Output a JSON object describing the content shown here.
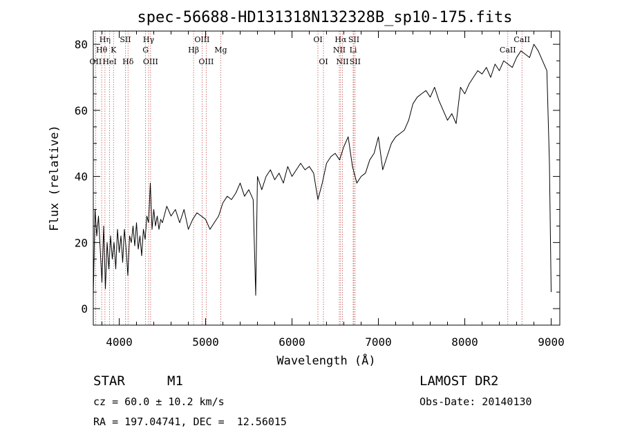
{
  "chart_data": {
    "type": "line",
    "title": "spec-56688-HD131318N132328B_sp10-175.fits",
    "xlabel": "Wavelength (Å)",
    "ylabel": "Flux (relative)",
    "xlim": [
      3700,
      9100
    ],
    "ylim": [
      -5,
      84
    ],
    "xticks": [
      4000,
      5000,
      6000,
      7000,
      8000,
      9000
    ],
    "yticks": [
      0,
      20,
      40,
      60,
      80
    ],
    "series": [
      {
        "x": [
          3700,
          3720,
          3740,
          3760,
          3780,
          3800,
          3820,
          3840,
          3860,
          3880,
          3900,
          3920,
          3940,
          3960,
          3980,
          4000,
          4020,
          4040,
          4060,
          4080,
          4100,
          4120,
          4140,
          4160,
          4180,
          4200,
          4220,
          4240,
          4260,
          4280,
          4300,
          4320,
          4340,
          4360,
          4380,
          4400,
          4420,
          4440,
          4460,
          4480,
          4500,
          4550,
          4600,
          4650,
          4700,
          4750,
          4800,
          4850,
          4900,
          4950,
          5000,
          5050,
          5100,
          5150,
          5200,
          5250,
          5300,
          5350,
          5400,
          5450,
          5500,
          5550,
          5580,
          5600,
          5650,
          5700,
          5750,
          5800,
          5850,
          5900,
          5950,
          6000,
          6050,
          6100,
          6150,
          6200,
          6250,
          6300,
          6350,
          6400,
          6450,
          6500,
          6550,
          6600,
          6650,
          6700,
          6750,
          6800,
          6850,
          6900,
          6950,
          7000,
          7050,
          7100,
          7150,
          7200,
          7250,
          7300,
          7350,
          7400,
          7450,
          7500,
          7550,
          7600,
          7650,
          7700,
          7750,
          7800,
          7850,
          7900,
          7950,
          8000,
          8050,
          8100,
          8150,
          8200,
          8250,
          8300,
          8350,
          8400,
          8450,
          8500,
          8550,
          8600,
          8650,
          8700,
          8750,
          8800,
          8850,
          8900,
          8950,
          8980,
          9000
        ],
        "y": [
          4,
          30,
          22,
          28,
          18,
          8,
          25,
          6,
          20,
          12,
          22,
          15,
          20,
          12,
          24,
          17,
          22,
          14,
          24,
          18,
          10,
          22,
          20,
          25,
          19,
          26,
          18,
          22,
          16,
          24,
          21,
          28,
          26,
          38,
          24,
          30,
          25,
          28,
          24,
          27,
          26,
          31,
          28,
          30,
          26,
          30,
          24,
          27,
          29,
          28,
          27,
          24,
          26,
          28,
          32,
          34,
          33,
          35,
          38,
          34,
          36,
          33,
          4,
          40,
          36,
          40,
          42,
          39,
          41,
          38,
          43,
          40,
          42,
          44,
          42,
          43,
          41,
          33,
          38,
          44,
          46,
          47,
          45,
          49,
          52,
          43,
          38,
          40,
          41,
          45,
          47,
          52,
          42,
          46,
          50,
          52,
          53,
          54,
          57,
          62,
          64,
          65,
          66,
          64,
          67,
          63,
          60,
          57,
          59,
          56,
          67,
          65,
          68,
          70,
          72,
          71,
          73,
          70,
          74,
          72,
          75,
          74,
          73,
          76,
          78,
          77,
          76,
          80,
          78,
          75,
          72,
          44,
          5
        ]
      }
    ],
    "line_markers": [
      {
        "label": "OII",
        "x": 3727,
        "row": 3
      },
      {
        "label": "Hη",
        "x": 3835,
        "row": 1
      },
      {
        "label": "Hθ",
        "x": 3797,
        "row": 2
      },
      {
        "label": "HeI",
        "x": 3889,
        "row": 3
      },
      {
        "label": "K",
        "x": 3934,
        "row": 2
      },
      {
        "label": "SII",
        "x": 4072,
        "row": 1
      },
      {
        "label": "Hδ",
        "x": 4102,
        "row": 3
      },
      {
        "label": "Hγ",
        "x": 4340,
        "row": 1
      },
      {
        "label": "G",
        "x": 4305,
        "row": 2
      },
      {
        "label": "OIII",
        "x": 4363,
        "row": 3
      },
      {
        "label": "Hβ",
        "x": 4861,
        "row": 2
      },
      {
        "label": "OIII",
        "x": 4959,
        "row": 1
      },
      {
        "label": "OIII",
        "x": 5007,
        "row": 3
      },
      {
        "label": "Mg",
        "x": 5175,
        "row": 2
      },
      {
        "label": "OI",
        "x": 6300,
        "row": 1
      },
      {
        "label": "OI",
        "x": 6364,
        "row": 3
      },
      {
        "label": "Hα",
        "x": 6563,
        "row": 1
      },
      {
        "label": "NII",
        "x": 6548,
        "row": 2
      },
      {
        "label": "NII",
        "x": 6584,
        "row": 3
      },
      {
        "label": "SII",
        "x": 6716,
        "row": 1
      },
      {
        "label": "Li",
        "x": 6708,
        "row": 2
      },
      {
        "label": "SII",
        "x": 6731,
        "row": 3
      },
      {
        "label": "CaII",
        "x": 8498,
        "row": 2
      },
      {
        "label": "CaII",
        "x": 8662,
        "row": 1
      }
    ]
  },
  "footer": {
    "object_class": "STAR",
    "subclass": "M1",
    "cz": "cz = 60.0 ± 10.2 km/s",
    "coords": "RA = 197.04741, DEC =  12.56015",
    "survey": "LAMOST DR2",
    "obs_date": "Obs-Date: 20140130"
  },
  "colors": {
    "spectrum": "#000000",
    "line_markers": "#c0504d",
    "axes": "#000000"
  }
}
